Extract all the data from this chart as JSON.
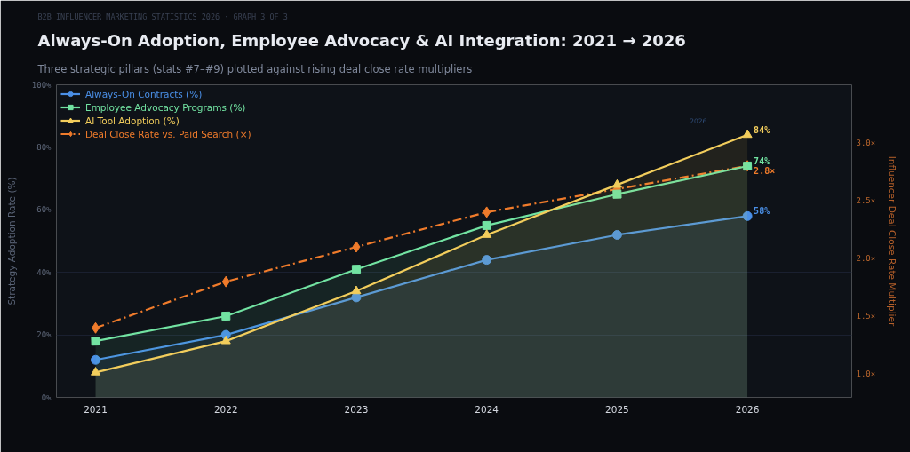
{
  "chart_data": {
    "type": "line",
    "title": "Always-On Adoption, Employee Advocacy & AI Integration: 2021 → 2026",
    "subtitle": "Three strategic pillars (stats #7–#9) plotted against rising deal close rate multipliers",
    "ylabel": "Strategy Adoption Rate (%)",
    "y2label": "Influencer Deal Close Rate Multiplier",
    "annotations": [
      "B2B INFLUENCER MARKETING STATISTICS 2026  ·  GRAPH 3 OF 3",
      "2026"
    ],
    "x": [
      2021,
      2022,
      2023,
      2024,
      2025,
      2026
    ],
    "xlim": [
      2020.7,
      2026.8
    ],
    "xticks": [
      2021,
      2022,
      2023,
      2024,
      2025,
      2026
    ],
    "ylim": [
      0,
      100
    ],
    "yticks": [
      {
        "value": 0,
        "label": "0%"
      },
      {
        "value": 20,
        "label": "20%"
      },
      {
        "value": 40,
        "label": "40%"
      },
      {
        "value": 60,
        "label": "60%"
      },
      {
        "value": 80,
        "label": "80%"
      },
      {
        "value": 100,
        "label": "100%"
      }
    ],
    "y2lim": [
      0.8,
      3.5
    ],
    "y2ticks": [
      {
        "value": 1.0,
        "label": "1.0×"
      },
      {
        "value": 1.5,
        "label": "1.5×"
      },
      {
        "value": 2.0,
        "label": "2.0×"
      },
      {
        "value": 2.5,
        "label": "2.5×"
      },
      {
        "value": 3.0,
        "label": "3.0×"
      }
    ],
    "grid": "y",
    "legend": "top left",
    "series": [
      {
        "name": "Always-On Contracts (%)",
        "type": "area",
        "color": "#4a8fe6",
        "marker": "circle",
        "values": [
          12,
          20,
          32,
          44,
          52,
          58
        ],
        "value_labels": [
          null,
          null,
          null,
          null,
          null,
          "58%"
        ]
      },
      {
        "name": "Employee Advocacy Programs (%)",
        "type": "area",
        "color": "#72e3a2",
        "marker": "square",
        "values": [
          18,
          26,
          41,
          55,
          65,
          74
        ],
        "value_labels": [
          null,
          null,
          null,
          null,
          null,
          "74%"
        ]
      },
      {
        "name": "AI Tool Adoption (%)",
        "type": "area",
        "color": "#f2cd5c",
        "marker": "triangle",
        "values": [
          8,
          18,
          34,
          52,
          68,
          84
        ],
        "value_labels": [
          null,
          null,
          null,
          null,
          null,
          "84%"
        ]
      },
      {
        "name": "Deal Close Rate vs. Paid Search (×)",
        "axis": "y2",
        "color": "#ef7b2b",
        "marker": "diamond",
        "line_style": "dashdot",
        "values": [
          1.4,
          1.8,
          2.1,
          2.4,
          2.6,
          2.8
        ],
        "value_labels": [
          null,
          null,
          null,
          null,
          null,
          "2.8×"
        ]
      }
    ]
  }
}
